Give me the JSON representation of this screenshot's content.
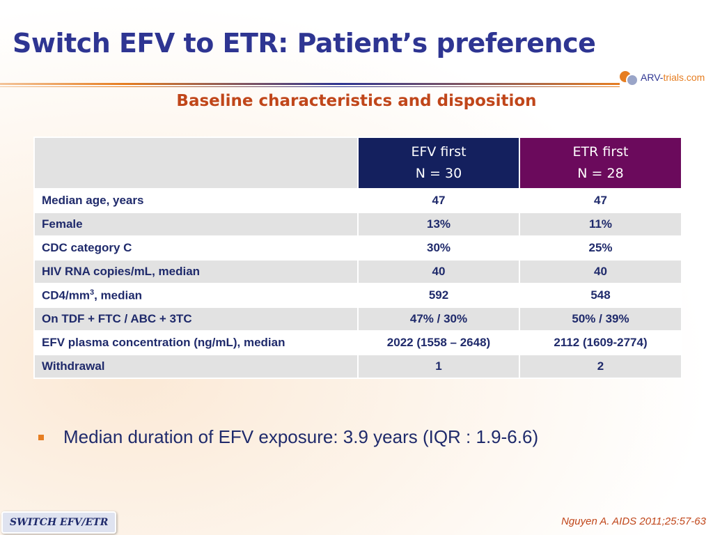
{
  "title": "Switch EFV to ETR: Patient’s preference",
  "logo": {
    "brand": "ARV-",
    "brand_accent": "trials",
    "suffix": ".com"
  },
  "subtitle": "Baseline characteristics and disposition",
  "table": {
    "headers": [
      {
        "line1": "EFV first",
        "line2": "N = 30"
      },
      {
        "line1": "ETR first",
        "line2": "N = 28"
      }
    ],
    "header_colors": {
      "efv": "#14205e",
      "etr": "#6b0a5c"
    },
    "rows": [
      {
        "label": "Median age, years",
        "efv": "47",
        "etr": "47"
      },
      {
        "label": "Female",
        "efv": "13%",
        "etr": "11%"
      },
      {
        "label": "CDC category C",
        "efv": "30%",
        "etr": "25%"
      },
      {
        "label": "HIV RNA copies/mL, median",
        "efv": "40",
        "etr": "40"
      },
      {
        "label_pre": "CD4/mm",
        "label_sup": "3",
        "label_post": ", median",
        "efv": "592",
        "etr": "548"
      },
      {
        "label": "On TDF + FTC / ABC + 3TC",
        "efv": "47% / 30%",
        "etr": "50% / 39%"
      },
      {
        "label": "EFV plasma concentration (ng/mL), median",
        "efv": "2022 (1558 – 2648)",
        "etr": "2112 (1609-2774)"
      },
      {
        "label": "Withdrawal",
        "efv": "1",
        "etr": "2"
      }
    ]
  },
  "bullet": "Median duration of EFV exposure: 3.9 years (IQR : 1.9-6.6)",
  "footer_tag": "SWITCH EFV/ETR",
  "citation": "Nguyen A. AIDS 2011;25:57-63"
}
